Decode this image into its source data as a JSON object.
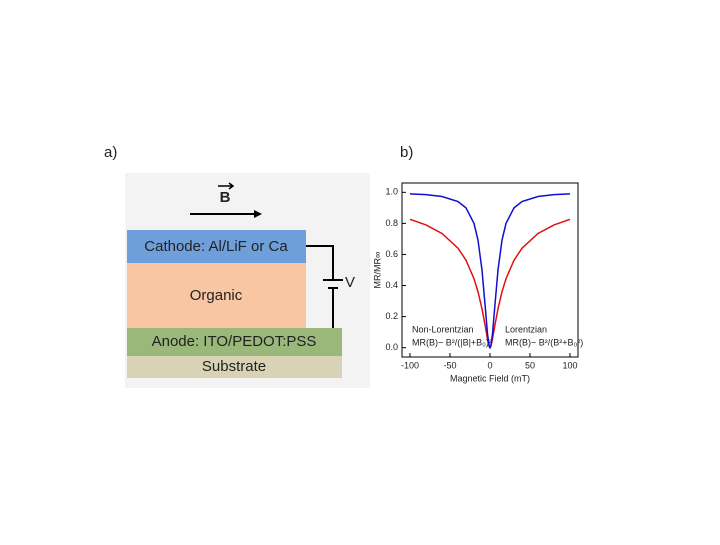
{
  "diagram": {
    "panel_a": "a)",
    "panel_b": "b)",
    "field": "B",
    "cathode": "Cathode: Al/LiF or Ca",
    "organic": "Organic",
    "anode": "Anode: ITO/PEDOT:PSS",
    "substrate": "Substrate",
    "voltage": "V"
  },
  "chart_data": {
    "type": "line",
    "x_label": "Magnetic Field (mT)",
    "y_label": "MR/MR∞",
    "x": [
      -100,
      -80,
      -60,
      -40,
      -30,
      -20,
      -15,
      -10,
      -6,
      -3,
      -1,
      0,
      1,
      3,
      6,
      10,
      15,
      20,
      30,
      40,
      60,
      80,
      100
    ],
    "series": [
      {
        "name": "Non-Lorentzian",
        "color": "#e01010",
        "values": [
          0.826,
          0.79,
          0.735,
          0.64,
          0.563,
          0.444,
          0.36,
          0.25,
          0.141,
          0.053,
          0.008,
          0,
          0.008,
          0.053,
          0.141,
          0.25,
          0.36,
          0.444,
          0.563,
          0.64,
          0.735,
          0.79,
          0.826
        ]
      },
      {
        "name": "Lorentzian",
        "color": "#1010d0",
        "values": [
          0.99,
          0.985,
          0.973,
          0.941,
          0.9,
          0.8,
          0.692,
          0.5,
          0.265,
          0.083,
          0.01,
          0,
          0.01,
          0.083,
          0.265,
          0.5,
          0.692,
          0.8,
          0.9,
          0.941,
          0.973,
          0.985,
          0.99
        ]
      }
    ],
    "annotations": [
      "MR(B)~ B²/(|B|+B₀)²",
      "MR(B)~ B²/(B²+B₀²)"
    ],
    "xlim": [
      -110,
      110
    ],
    "xticks": [
      -100,
      -50,
      0,
      50,
      100
    ],
    "ylim": [
      -0.06,
      1.06
    ],
    "yticks": [
      {
        "value": 0,
        "label": "0.0"
      },
      0.2,
      0.4,
      0.6,
      0.8,
      {
        "value": 1,
        "label": "1.0"
      }
    ]
  }
}
